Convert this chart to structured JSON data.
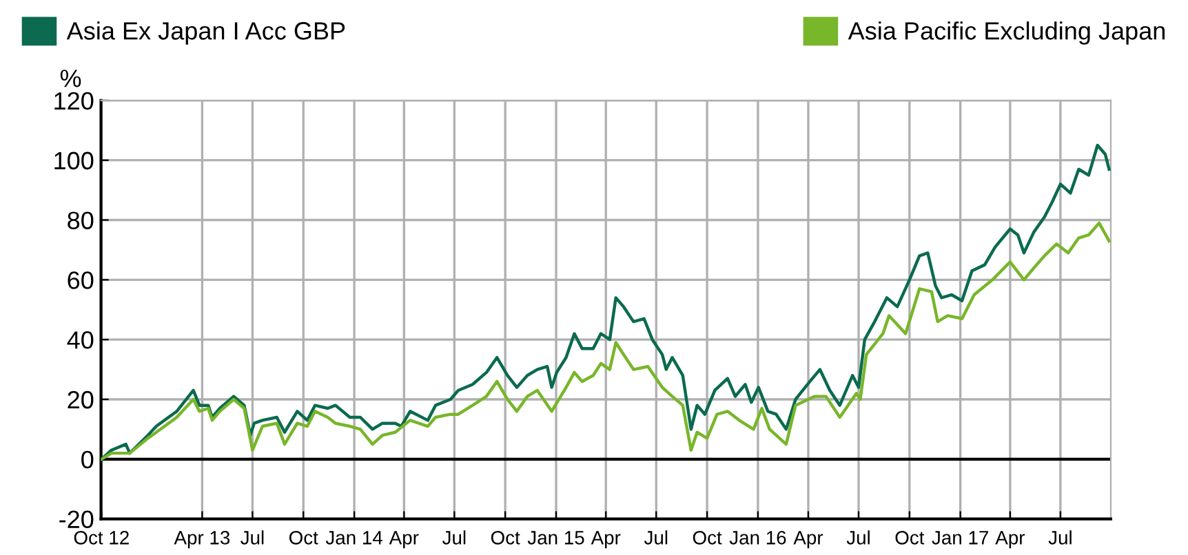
{
  "chart_data": {
    "type": "line",
    "ylabel": "%",
    "xlim": [
      "2012-09-30",
      "2017-09-30"
    ],
    "ylim": [
      -20,
      120
    ],
    "yticks": [
      -20,
      0,
      20,
      40,
      60,
      80,
      100,
      120
    ],
    "xticks": [
      {
        "value": "2012-10-01",
        "label": "Oct 12"
      },
      {
        "value": "2013-04-01",
        "label": "Apr 13"
      },
      {
        "value": "2013-07-01",
        "label": "Jul"
      },
      {
        "value": "2013-10-01",
        "label": "Oct"
      },
      {
        "value": "2014-01-01",
        "label": "Jan 14"
      },
      {
        "value": "2014-04-01",
        "label": "Apr"
      },
      {
        "value": "2014-07-01",
        "label": "Jul"
      },
      {
        "value": "2014-10-01",
        "label": "Oct"
      },
      {
        "value": "2015-01-01",
        "label": "Jan 15"
      },
      {
        "value": "2015-04-01",
        "label": "Apr"
      },
      {
        "value": "2015-07-01",
        "label": "Jul"
      },
      {
        "value": "2015-10-01",
        "label": "Oct"
      },
      {
        "value": "2016-01-01",
        "label": "Jan 16"
      },
      {
        "value": "2016-04-01",
        "label": "Apr"
      },
      {
        "value": "2016-07-01",
        "label": "Jul"
      },
      {
        "value": "2016-10-01",
        "label": "Oct"
      },
      {
        "value": "2017-01-01",
        "label": "Jan 17"
      },
      {
        "value": "2017-04-01",
        "label": "Apr"
      },
      {
        "value": "2017-07-01",
        "label": "Jul"
      }
    ],
    "grid": true,
    "legend": "top",
    "ref_lines": [
      {
        "axis": "y",
        "value": 0,
        "color": "#000000"
      }
    ],
    "series": [
      {
        "name": "Asia Ex Japan I Acc GBP",
        "color": "#0b6a4f",
        "x": [
          "2012-10-01",
          "2012-10-19",
          "2012-11-14",
          "2012-11-21",
          "2012-12-24",
          "2013-01-08",
          "2013-02-14",
          "2013-03-16",
          "2013-03-27",
          "2013-04-12",
          "2013-04-19",
          "2013-05-03",
          "2013-05-28",
          "2013-06-16",
          "2013-06-27",
          "2013-07-04",
          "2013-07-19",
          "2013-08-14",
          "2013-08-28",
          "2013-09-20",
          "2013-10-08",
          "2013-10-22",
          "2013-11-14",
          "2013-11-28",
          "2013-12-24",
          "2014-01-12",
          "2014-02-03",
          "2014-02-21",
          "2014-03-16",
          "2014-03-27",
          "2014-04-12",
          "2014-05-14",
          "2014-05-28",
          "2014-06-24",
          "2014-07-08",
          "2014-08-03",
          "2014-08-28",
          "2014-09-16",
          "2014-10-05",
          "2014-10-22",
          "2014-11-10",
          "2014-11-28",
          "2014-12-16",
          "2014-12-24",
          "2015-01-02",
          "2015-01-19",
          "2015-02-03",
          "2015-02-17",
          "2015-03-09",
          "2015-03-23",
          "2015-04-08",
          "2015-04-19",
          "2015-05-03",
          "2015-05-21",
          "2015-06-09",
          "2015-06-24",
          "2015-07-12",
          "2015-07-19",
          "2015-07-30",
          "2015-08-18",
          "2015-09-02",
          "2015-09-13",
          "2015-09-27",
          "2015-10-15",
          "2015-11-07",
          "2015-11-21",
          "2015-12-09",
          "2015-12-20",
          "2016-01-02",
          "2016-01-19",
          "2016-02-03",
          "2016-02-21",
          "2016-03-09",
          "2016-04-04",
          "2016-04-22",
          "2016-05-10",
          "2016-05-28",
          "2016-06-20",
          "2016-07-01",
          "2016-07-12",
          "2016-07-30",
          "2016-08-21",
          "2016-09-09",
          "2016-10-01",
          "2016-10-19",
          "2016-11-03",
          "2016-11-17",
          "2016-11-28",
          "2016-12-16",
          "2017-01-04",
          "2017-01-22",
          "2017-02-14",
          "2017-03-05",
          "2017-04-01",
          "2017-04-15",
          "2017-04-26",
          "2017-05-14",
          "2017-06-02",
          "2017-06-16",
          "2017-07-01",
          "2017-07-19",
          "2017-08-03",
          "2017-08-21",
          "2017-09-06",
          "2017-09-20",
          "2017-09-27"
        ],
        "values": [
          0,
          3,
          5,
          2,
          8,
          11,
          16,
          23,
          18,
          18,
          14,
          17,
          21,
          18,
          8,
          12,
          13,
          14,
          9,
          16,
          13,
          18,
          17,
          18,
          14,
          14,
          10,
          12,
          12,
          11,
          16,
          13,
          18,
          20,
          23,
          25,
          29,
          34,
          28,
          24,
          28,
          30,
          31,
          24,
          29,
          34,
          42,
          37,
          37,
          42,
          40,
          54,
          51,
          46,
          47,
          40,
          35,
          30,
          34,
          28,
          10,
          18,
          15,
          23,
          27,
          21,
          25,
          19,
          24,
          16,
          15,
          10,
          20,
          26,
          30,
          23,
          18,
          28,
          24,
          40,
          46,
          54,
          51,
          60,
          68,
          69,
          58,
          54,
          55,
          53,
          63,
          65,
          71,
          77,
          75,
          69,
          76,
          81,
          86,
          92,
          89,
          97,
          95,
          105,
          102,
          97
        ]
      },
      {
        "name": "Asia Pacific Excluding Japan",
        "color": "#78b62a",
        "x": [
          "2012-10-01",
          "2012-10-19",
          "2012-11-21",
          "2012-12-24",
          "2013-01-08",
          "2013-02-14",
          "2013-03-16",
          "2013-03-27",
          "2013-04-12",
          "2013-04-19",
          "2013-05-03",
          "2013-05-28",
          "2013-06-16",
          "2013-07-01",
          "2013-07-19",
          "2013-08-14",
          "2013-08-28",
          "2013-09-20",
          "2013-10-08",
          "2013-10-22",
          "2013-11-14",
          "2013-11-28",
          "2013-12-24",
          "2014-01-12",
          "2014-02-03",
          "2014-02-21",
          "2014-03-16",
          "2014-04-12",
          "2014-05-14",
          "2014-05-28",
          "2014-06-24",
          "2014-07-08",
          "2014-08-03",
          "2014-08-28",
          "2014-09-16",
          "2014-10-05",
          "2014-10-22",
          "2014-11-10",
          "2014-11-28",
          "2014-12-24",
          "2015-01-19",
          "2015-02-03",
          "2015-02-17",
          "2015-03-09",
          "2015-03-23",
          "2015-04-08",
          "2015-04-19",
          "2015-05-03",
          "2015-05-21",
          "2015-06-16",
          "2015-07-12",
          "2015-07-30",
          "2015-08-18",
          "2015-09-02",
          "2015-09-13",
          "2015-10-01",
          "2015-10-19",
          "2015-11-07",
          "2015-11-28",
          "2015-12-24",
          "2016-01-08",
          "2016-01-22",
          "2016-02-21",
          "2016-03-09",
          "2016-04-12",
          "2016-05-03",
          "2016-05-28",
          "2016-06-27",
          "2016-07-04",
          "2016-07-15",
          "2016-08-14",
          "2016-08-25",
          "2016-09-24",
          "2016-10-19",
          "2016-11-10",
          "2016-11-21",
          "2016-12-09",
          "2017-01-04",
          "2017-01-26",
          "2017-02-28",
          "2017-04-01",
          "2017-04-26",
          "2017-05-14",
          "2017-06-02",
          "2017-06-24",
          "2017-07-15",
          "2017-08-03",
          "2017-08-21",
          "2017-09-09",
          "2017-09-27"
        ],
        "values": [
          0,
          2,
          2,
          7,
          9,
          14,
          20,
          16,
          17,
          13,
          16,
          20,
          17,
          3,
          11,
          12,
          5,
          12,
          11,
          16,
          14,
          12,
          11,
          10,
          5,
          8,
          9,
          13,
          11,
          14,
          15,
          15,
          18,
          21,
          26,
          20,
          16,
          21,
          23,
          16,
          24,
          29,
          26,
          28,
          32,
          30,
          39,
          35,
          30,
          31,
          24,
          21,
          18,
          3,
          9,
          7,
          15,
          16,
          13,
          10,
          17,
          10,
          5,
          18,
          21,
          21,
          14,
          22,
          20,
          35,
          42,
          48,
          42,
          57,
          56,
          46,
          48,
          47,
          55,
          60,
          66,
          60,
          64,
          68,
          72,
          69,
          74,
          75,
          79,
          73
        ]
      }
    ]
  }
}
